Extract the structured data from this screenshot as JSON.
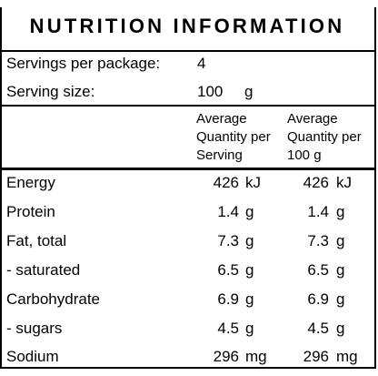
{
  "cropped_top_text": "",
  "title": "NUTRITION INFORMATION",
  "servings_per_package": {
    "label": "Servings per package:",
    "value": "4"
  },
  "serving_size": {
    "label": "Serving size:",
    "value": "100",
    "unit": "g"
  },
  "columns": {
    "per_serving": [
      "Average",
      "Quantity per",
      "Serving"
    ],
    "per_100g": [
      "Average",
      "Quantity per",
      "100 g"
    ]
  },
  "rows": [
    {
      "name": "Energy",
      "serving": "426",
      "serving_unit": "kJ",
      "per100": "426",
      "per100_unit": "kJ"
    },
    {
      "name": "Protein",
      "serving": "1.4",
      "serving_unit": "g",
      "per100": "1.4",
      "per100_unit": "g"
    },
    {
      "name": "Fat, total",
      "serving": "7.3",
      "serving_unit": "g",
      "per100": "7.3",
      "per100_unit": "g"
    },
    {
      "name": "- saturated",
      "serving": "6.5",
      "serving_unit": "g",
      "per100": "6.5",
      "per100_unit": "g"
    },
    {
      "name": "Carbohydrate",
      "serving": "6.9",
      "serving_unit": "g",
      "per100": "6.9",
      "per100_unit": "g"
    },
    {
      "name": "- sugars",
      "serving": "4.5",
      "serving_unit": "g",
      "per100": "4.5",
      "per100_unit": "g"
    },
    {
      "name": "Sodium",
      "serving": "296",
      "serving_unit": "mg",
      "per100": "296",
      "per100_unit": "mg"
    }
  ]
}
